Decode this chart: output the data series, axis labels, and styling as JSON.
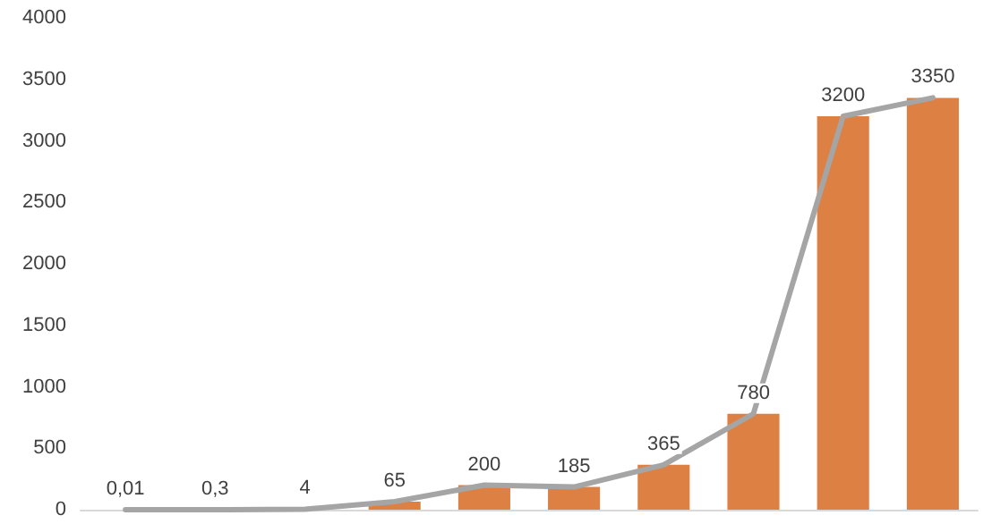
{
  "chart_data": {
    "type": "bar",
    "categories": [
      null,
      null,
      null,
      null,
      null,
      null,
      null,
      null,
      null,
      null
    ],
    "series": [
      {
        "color": "#dd8043",
        "values": [
          0,
          0,
          0,
          65,
          200,
          185,
          365,
          780,
          3200,
          3350
        ]
      },
      {
        "type": "line",
        "color": "#a5a5a5",
        "values": [
          0.01,
          0.3,
          4,
          65,
          200,
          185,
          365,
          780,
          3200,
          3350
        ],
        "value_labels": [
          "0,01",
          "0,3",
          "4",
          "65",
          "200",
          "185",
          "365",
          "780",
          "3200",
          "3350"
        ]
      }
    ],
    "ylim": [
      0,
      4000
    ],
    "yticks": [
      0,
      500,
      1000,
      1500,
      2000,
      2500,
      3000,
      3500,
      4000
    ],
    "grid": false,
    "marker": "none",
    "line_style": "solid"
  }
}
